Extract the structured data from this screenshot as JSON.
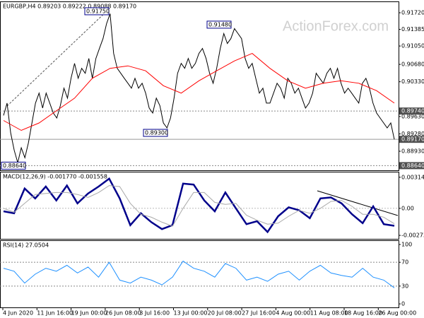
{
  "chart_data": [
    {
      "type": "line",
      "title": "EURGBP,H4 0.89203 0.89222 0.89088 0.89170",
      "ylim": [
        0.88546,
        0.91934
      ],
      "yticks": [
        {
          "value": 0.9172,
          "label": "0.91720"
        },
        {
          "value": 0.91385,
          "label": "0.91385"
        },
        {
          "value": 0.9105,
          "label": "0.91050"
        },
        {
          "value": 0.9068,
          "label": "0.90680"
        },
        {
          "value": 0.9033,
          "label": "0.90330"
        },
        {
          "value": 0.8963,
          "label": "0.89630"
        },
        {
          "value": 0.8928,
          "label": "0.89280"
        },
        {
          "value": 0.8893,
          "label": "0.88930"
        }
      ],
      "series": [
        {
          "color": "#000000",
          "values": [
            0.8965,
            0.899,
            0.893,
            0.8895,
            0.887,
            0.89,
            0.888,
            0.891,
            0.895,
            0.899,
            0.901,
            0.898,
            0.901,
            0.899,
            0.897,
            0.896,
            0.8985,
            0.902,
            0.9,
            0.904,
            0.907,
            0.904,
            0.906,
            0.905,
            0.908,
            0.904,
            0.908,
            0.91,
            0.912,
            0.915,
            0.917,
            0.909,
            0.906,
            0.905,
            0.904,
            0.903,
            0.902,
            0.904,
            0.902,
            0.903,
            0.901,
            0.898,
            0.897,
            0.9,
            0.8985,
            0.895,
            0.894,
            0.896,
            0.9,
            0.905,
            0.907,
            0.906,
            0.908,
            0.906,
            0.907,
            0.909,
            0.91,
            0.908,
            0.905,
            0.903,
            0.906,
            0.91,
            0.913,
            0.911,
            0.912,
            0.914,
            0.913,
            0.912,
            0.908,
            0.906,
            0.907,
            0.904,
            0.901,
            0.902,
            0.899,
            0.899,
            0.901,
            0.903,
            0.902,
            0.9,
            0.904,
            0.903,
            0.901,
            0.902,
            0.9,
            0.898,
            0.899,
            0.901,
            0.905,
            0.904,
            0.903,
            0.905,
            0.906,
            0.904,
            0.906,
            0.903,
            0.901,
            0.902,
            0.901,
            0.9,
            0.899,
            0.903,
            0.904,
            0.902,
            0.899,
            0.897,
            0.896,
            0.895,
            0.894,
            0.895,
            0.8917
          ]
        },
        {
          "color": "#ff0000",
          "values": [
            0.8955,
            0.8935,
            0.895,
            0.8975,
            0.9,
            0.904,
            0.906,
            0.9065,
            0.9055,
            0.9025,
            0.901,
            0.9035,
            0.9055,
            0.9075,
            0.909,
            0.906,
            0.9035,
            0.902,
            0.903,
            0.9035,
            0.903,
            0.9015,
            0.899
          ]
        }
      ],
      "annotations": [
        {
          "value": 0.9175,
          "label": "0.91750"
        },
        {
          "value": 0.9148,
          "label": "0.91480"
        },
        {
          "value": 0.893,
          "label": "0.89300"
        },
        {
          "value": 0.8864,
          "label": "0.88640"
        }
      ],
      "levels": [
        {
          "value": 0.8974,
          "label": "0.89740"
        },
        {
          "value": 0.8864,
          "label": "0.88640"
        }
      ],
      "current": {
        "value": 0.8917,
        "label": "0.89170"
      }
    },
    {
      "type": "line",
      "title": "MACD(12,26,9) -0.001770 -0.001558",
      "ylim": [
        -0.00309,
        0.00363
      ],
      "yticks": [
        0.003143,
        {
          "value": 0,
          "label": "0.00"
        },
        -0.002737
      ],
      "series": [
        {
          "color": "#00008b",
          "values": [
            -0.0003,
            -0.0005,
            0.002,
            0.001,
            0.0022,
            0.0008,
            0.0023,
            0.0005,
            0.0015,
            0.0022,
            0.003,
            0.001,
            -0.0017,
            -0.0005,
            -0.0014,
            -0.0021,
            -0.0017,
            0.0025,
            0.0024,
            0.0008,
            -0.0003,
            0.0016,
            0,
            -0.0016,
            -0.0013,
            -0.0024,
            -0.0008,
            0.0001,
            -0.0002,
            -0.001,
            0.001,
            0.0011,
            0.0005,
            -0.0006,
            -0.0015,
            0.0002,
            -0.0016,
            -0.00177
          ]
        },
        {
          "color": "#a9a9a9",
          "values": [
            0,
            -0.0004,
            0.0005,
            0.0014,
            0.0015,
            0.0016,
            0.0016,
            0.0014,
            0.0011,
            0.0016,
            0.0023,
            0.0022,
            0.0005,
            -0.0006,
            -0.0009,
            -0.0014,
            -0.0018,
            0,
            0.0016,
            0.0016,
            0.0006,
            0.0004,
            0.0005,
            -0.0007,
            -0.0012,
            -0.0016,
            -0.0015,
            -0.0008,
            -0.0002,
            -0.0005,
            0,
            0.0007,
            0.0008,
            0.0002,
            -0.0006,
            -0.0006,
            -0.0009,
            -0.001558
          ]
        }
      ]
    },
    {
      "type": "line",
      "title": "RSI(14) 27.0504",
      "ylim": [
        -5.9,
        105.9
      ],
      "yticks": [
        100,
        70,
        30,
        0
      ],
      "levels": [
        70,
        30
      ],
      "series": [
        {
          "color": "#1e90ff",
          "values": [
            60,
            55,
            35,
            50,
            60,
            55,
            65,
            52,
            62,
            45,
            70,
            40,
            35,
            45,
            40,
            32,
            45,
            72,
            60,
            55,
            45,
            68,
            60,
            40,
            45,
            38,
            50,
            55,
            40,
            55,
            65,
            52,
            48,
            45,
            60,
            45,
            40,
            27.0504
          ]
        }
      ]
    }
  ],
  "x_labels": [
    "4 Jun 2020",
    "11 Jun 16:00",
    "19 Jun 00:00",
    "26 Jun 08:00",
    "3 Jul 16:00",
    "13 Jul 00:00",
    "20 Jul 08:00",
    "27 Jul 16:00",
    "4 Aug 00:00",
    "11 Aug 08:00",
    "18 Aug 16:00",
    "26 Aug 00:00"
  ],
  "watermark": "ActionForex.com"
}
